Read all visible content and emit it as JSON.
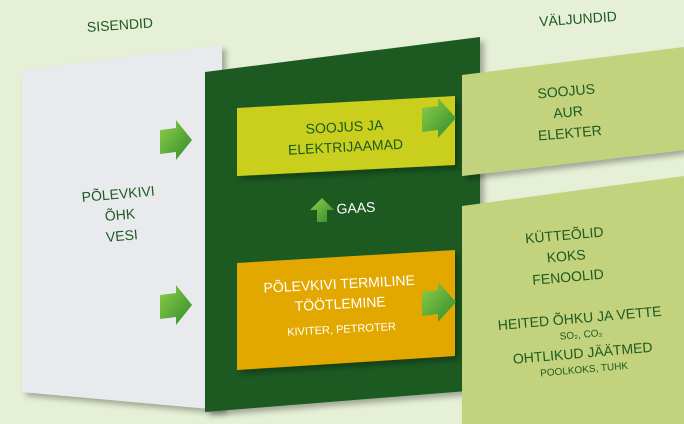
{
  "header": {
    "inputs": "SISENDID",
    "outputs": "VÄLJUNDID"
  },
  "inputs": [
    "PÕLEVKIVI",
    "ÕHK",
    "VESI"
  ],
  "process": {
    "power_plants": [
      "SOOJUS JA",
      "ELEKTRIJAAMAD"
    ],
    "gas": "GAAS",
    "thermal": {
      "lines": [
        "PÕLEVKIVI TERMILINE",
        "TÖÖTLEMINE"
      ],
      "companies": "KIVITER, PETROTER"
    }
  },
  "outputs_energy": [
    "SOOJUS",
    "AUR",
    "ELEKTER"
  ],
  "outputs_products": {
    "products": [
      "KÜTTEÕLID",
      "KOKS",
      "FENOOLID"
    ],
    "emissions": "HEITED ÕHKU JA VETTE",
    "emissions_detail": "SO₂, CO₂",
    "waste": "OHTLIKUD JÄÄTMED",
    "waste_detail": "POOLKOKS, TUHK"
  }
}
